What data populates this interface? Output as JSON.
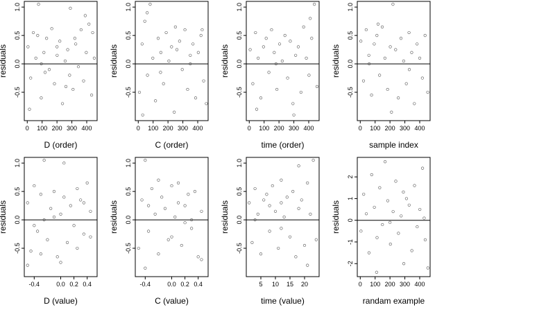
{
  "chart_data": [
    {
      "id": "d-order",
      "type": "scatter",
      "xlabel": "D (order)",
      "ylabel": "residuals",
      "xlim": [
        -20,
        470
      ],
      "ylim": [
        -1.0,
        1.1
      ],
      "xticks": [
        0,
        100,
        200,
        300,
        400
      ],
      "yticks": [
        -0.5,
        0.0,
        0.5,
        1.0
      ],
      "xtick_labels": [
        "0",
        "100",
        "200",
        "300",
        "400"
      ],
      "ytick_labels": [
        "-0.5",
        "0.0",
        "0.5",
        "1.0"
      ],
      "zero_line": 0,
      "series": [
        {
          "x": [
            5,
            23,
            41,
            58,
            76,
            94,
            112,
            130,
            148,
            165,
            183,
            201,
            219,
            237,
            255,
            272,
            290,
            308,
            326,
            344,
            362,
            379,
            397,
            415,
            433,
            451,
            15,
            70,
            120,
            200,
            260,
            320,
            390,
            440,
            285,
            95
          ],
          "y": [
            0.3,
            -0.25,
            0.55,
            0.1,
            1.05,
            -0.6,
            0.2,
            0.45,
            -0.1,
            0.62,
            -0.35,
            0.15,
            0.4,
            -0.7,
            0.05,
            0.25,
            0.98,
            -0.45,
            0.35,
            -0.05,
            0.6,
            -0.3,
            0.2,
            0.7,
            -0.55,
            0.1,
            -0.8,
            0.5,
            -0.15,
            0.3,
            -0.4,
            0.45,
            0.85,
            0.55,
            -0.2,
            0.0
          ]
        }
      ]
    },
    {
      "id": "c-order",
      "type": "scatter",
      "xlabel": "C (order)",
      "ylabel": "residuals",
      "xlim": [
        -20,
        470
      ],
      "ylim": [
        -1.0,
        1.1
      ],
      "xticks": [
        0,
        100,
        200,
        300,
        400
      ],
      "yticks": [
        -0.5,
        0.0,
        0.5,
        1.0
      ],
      "xtick_labels": [
        "0",
        "100",
        "200",
        "300",
        "400"
      ],
      "ytick_labels": [
        "-0.5",
        "0.0",
        "0.5",
        "1.0"
      ],
      "zero_line": 0,
      "series": [
        {
          "x": [
            8,
            26,
            44,
            62,
            80,
            98,
            116,
            134,
            152,
            170,
            188,
            206,
            224,
            242,
            260,
            278,
            296,
            314,
            332,
            350,
            368,
            386,
            404,
            422,
            440,
            458,
            60,
            150,
            250,
            350,
            430,
            30
          ],
          "y": [
            -0.5,
            0.35,
            0.75,
            -0.2,
            1.05,
            0.1,
            -0.65,
            0.45,
            0.2,
            -0.35,
            0.55,
            0.05,
            0.3,
            -0.85,
            0.25,
            0.4,
            -0.1,
            0.6,
            -0.45,
            0.15,
            0.35,
            -0.6,
            0.2,
            0.5,
            -0.3,
            -0.7,
            0.9,
            -0.15,
            0.65,
            0.0,
            0.6,
            -0.9
          ]
        }
      ]
    },
    {
      "id": "time-order",
      "type": "scatter",
      "xlabel": "time (order)",
      "ylabel": "residuals",
      "xlim": [
        -20,
        470
      ],
      "ylim": [
        -1.0,
        1.1
      ],
      "xticks": [
        0,
        100,
        200,
        300,
        400
      ],
      "yticks": [
        -0.5,
        0.0,
        0.5,
        1.0
      ],
      "xtick_labels": [
        "0",
        "100",
        "200",
        "300",
        "400"
      ],
      "ytick_labels": [
        "-0.5",
        "0.0",
        "0.5",
        "1.0"
      ],
      "zero_line": 0,
      "series": [
        {
          "x": [
            6,
            24,
            42,
            60,
            78,
            96,
            114,
            132,
            150,
            168,
            186,
            204,
            222,
            240,
            258,
            276,
            294,
            312,
            330,
            348,
            366,
            384,
            402,
            420,
            438,
            456,
            50,
            180,
            300,
            410
          ],
          "y": [
            0.25,
            -0.35,
            0.55,
            0.1,
            -0.6,
            0.3,
            0.45,
            -0.15,
            0.6,
            0.2,
            -0.45,
            0.35,
            0.05,
            0.5,
            -0.25,
            0.4,
            -0.7,
            0.15,
            0.3,
            -0.5,
            0.65,
            0.1,
            -0.2,
            0.45,
            1.05,
            -0.4,
            -0.8,
            0.0,
            -0.9,
            0.8
          ]
        }
      ]
    },
    {
      "id": "sample-index",
      "type": "scatter",
      "xlabel": "sample index",
      "ylabel": "residuals",
      "xlim": [
        -20,
        470
      ],
      "ylim": [
        -1.0,
        1.1
      ],
      "xticks": [
        0,
        100,
        200,
        300,
        400
      ],
      "yticks": [
        -0.5,
        0.0,
        0.5,
        1.0
      ],
      "xtick_labels": [
        "0",
        "100",
        "200",
        "300",
        "400"
      ],
      "ytick_labels": [
        "-0.5",
        "0.0",
        "0.5",
        "1.0"
      ],
      "zero_line": 0,
      "series": [
        {
          "x": [
            4,
            22,
            40,
            58,
            76,
            94,
            112,
            130,
            148,
            166,
            184,
            202,
            220,
            238,
            256,
            274,
            292,
            310,
            328,
            346,
            364,
            382,
            400,
            418,
            436,
            454,
            210,
            120,
            330,
            60
          ],
          "y": [
            0.4,
            -0.3,
            0.6,
            0.15,
            -0.55,
            0.35,
            0.5,
            -0.2,
            0.65,
            0.1,
            -0.45,
            0.3,
            1.05,
            0.25,
            -0.6,
            0.45,
            0.05,
            -0.35,
            0.55,
            0.2,
            -0.7,
            0.35,
            0.1,
            -0.25,
            0.5,
            -0.5,
            -0.85,
            0.7,
            -0.1,
            0.0
          ]
        }
      ]
    },
    {
      "id": "d-value",
      "type": "scatter",
      "xlabel": "D (value)",
      "ylabel": "residuals",
      "xlim": [
        -0.55,
        0.55
      ],
      "ylim": [
        -1.0,
        1.1
      ],
      "xticks": [
        -0.4,
        0.0,
        0.2,
        0.4
      ],
      "yticks": [
        -0.5,
        0.0,
        0.5,
        1.0
      ],
      "xtick_labels": [
        "-0.4",
        "0.0",
        "0.2",
        "0.4"
      ],
      "ytick_labels": [
        "-0.5",
        "0.0",
        "0.5",
        "1.0"
      ],
      "zero_line": 0,
      "series": [
        {
          "x": [
            -0.5,
            -0.45,
            -0.4,
            -0.35,
            -0.3,
            -0.25,
            -0.2,
            -0.15,
            -0.1,
            -0.05,
            0.0,
            0.05,
            0.1,
            0.15,
            0.2,
            0.25,
            0.3,
            0.35,
            0.4,
            0.45,
            -0.5,
            -0.3,
            -0.1,
            0.05,
            0.25,
            0.45,
            -0.25,
            0.0,
            0.35,
            -0.4
          ],
          "y": [
            0.3,
            -0.55,
            0.6,
            -0.2,
            0.45,
            1.05,
            -0.35,
            0.2,
            0.5,
            -0.65,
            0.1,
            0.4,
            -0.4,
            0.25,
            -0.1,
            0.55,
            0.35,
            -0.25,
            0.65,
            0.15,
            -0.8,
            -0.6,
            0.05,
            1.0,
            -0.5,
            -0.3,
            0.0,
            -0.75,
            0.3,
            -0.1
          ]
        }
      ]
    },
    {
      "id": "c-value",
      "type": "scatter",
      "xlabel": "C (value)",
      "ylabel": "residuals",
      "xlim": [
        -0.55,
        0.55
      ],
      "ylim": [
        -1.0,
        1.1
      ],
      "xticks": [
        -0.4,
        0.0,
        0.2,
        0.4
      ],
      "yticks": [
        -0.5,
        0.0,
        0.5,
        1.0
      ],
      "xtick_labels": [
        "-0.4",
        "0.0",
        "0.2",
        "0.4"
      ],
      "ytick_labels": [
        "-0.5",
        "0.0",
        "0.5",
        "1.0"
      ],
      "zero_line": 0,
      "series": [
        {
          "x": [
            -0.5,
            -0.45,
            -0.4,
            -0.35,
            -0.3,
            -0.25,
            -0.2,
            -0.15,
            -0.1,
            -0.05,
            0.0,
            0.05,
            0.1,
            0.15,
            0.2,
            0.25,
            0.3,
            0.35,
            0.4,
            0.45,
            -0.4,
            -0.2,
            0.0,
            0.1,
            0.3,
            0.45,
            -0.35,
            0.2
          ],
          "y": [
            -0.5,
            0.35,
            1.05,
            -0.2,
            0.55,
            0.1,
            -0.6,
            0.4,
            0.2,
            -0.35,
            0.6,
            0.05,
            0.3,
            -0.45,
            0.25,
            0.45,
            -0.15,
            0.5,
            -0.65,
            0.15,
            -0.85,
            0.7,
            -0.3,
            0.65,
            0.0,
            -0.7,
            0.25,
            -0.05
          ]
        }
      ]
    },
    {
      "id": "time-value",
      "type": "scatter",
      "xlabel": "time (value)",
      "ylabel": "residuals",
      "xlim": [
        0,
        25
      ],
      "ylim": [
        -1.0,
        1.1
      ],
      "xticks": [
        5,
        10,
        15,
        20
      ],
      "yticks": [
        -0.5,
        0.0,
        0.5,
        1.0
      ],
      "xtick_labels": [
        "5",
        "10",
        "15",
        "20"
      ],
      "ytick_labels": [
        "-0.5",
        "0.0",
        "0.5",
        "1.0"
      ],
      "zero_line": 0,
      "series": [
        {
          "x": [
            1,
            2,
            3,
            4,
            5,
            6,
            7,
            8,
            9,
            10,
            11,
            12,
            13,
            14,
            15,
            16,
            17,
            18,
            19,
            20,
            21,
            22,
            23,
            24,
            12,
            12,
            18,
            21,
            8,
            3
          ],
          "y": [
            0.3,
            -0.4,
            0.55,
            0.1,
            -0.6,
            0.35,
            0.45,
            -0.2,
            0.6,
            0.15,
            -0.5,
            0.7,
            0.05,
            0.4,
            -0.3,
            0.5,
            -0.65,
            0.2,
            0.35,
            -0.45,
            0.65,
            0.1,
            1.05,
            -0.35,
            0.3,
            -0.15,
            0.95,
            -0.8,
            0.25,
            0.0
          ]
        }
      ]
    },
    {
      "id": "random-example",
      "type": "scatter",
      "xlabel": "randam example",
      "ylabel": "residuals",
      "xlim": [
        -20,
        470
      ],
      "ylim": [
        -2.6,
        2.9
      ],
      "xticks": [
        0,
        100,
        200,
        300,
        400
      ],
      "yticks": [
        -2,
        -1,
        0,
        1,
        2
      ],
      "xtick_labels": [
        "0",
        "100",
        "200",
        "300",
        "400"
      ],
      "ytick_labels": [
        "-2",
        "-1",
        "0",
        "1",
        "2"
      ],
      "zero_line": 0,
      "series": [
        {
          "x": [
            5,
            23,
            41,
            59,
            77,
            95,
            113,
            131,
            149,
            167,
            185,
            203,
            221,
            239,
            257,
            275,
            293,
            311,
            329,
            347,
            365,
            383,
            401,
            419,
            437,
            455,
            110,
            290,
            430,
            200
          ],
          "y": [
            -0.5,
            1.2,
            0.3,
            -1.5,
            2.1,
            0.6,
            -0.8,
            1.5,
            -0.2,
            2.7,
            0.9,
            -1.1,
            0.4,
            1.8,
            -0.6,
            0.2,
            -2.0,
            1.0,
            0.7,
            -1.4,
            1.6,
            -0.3,
            0.5,
            2.4,
            -0.9,
            -2.2,
            -2.4,
            1.3,
            0.1,
            -0.1
          ]
        }
      ]
    }
  ]
}
